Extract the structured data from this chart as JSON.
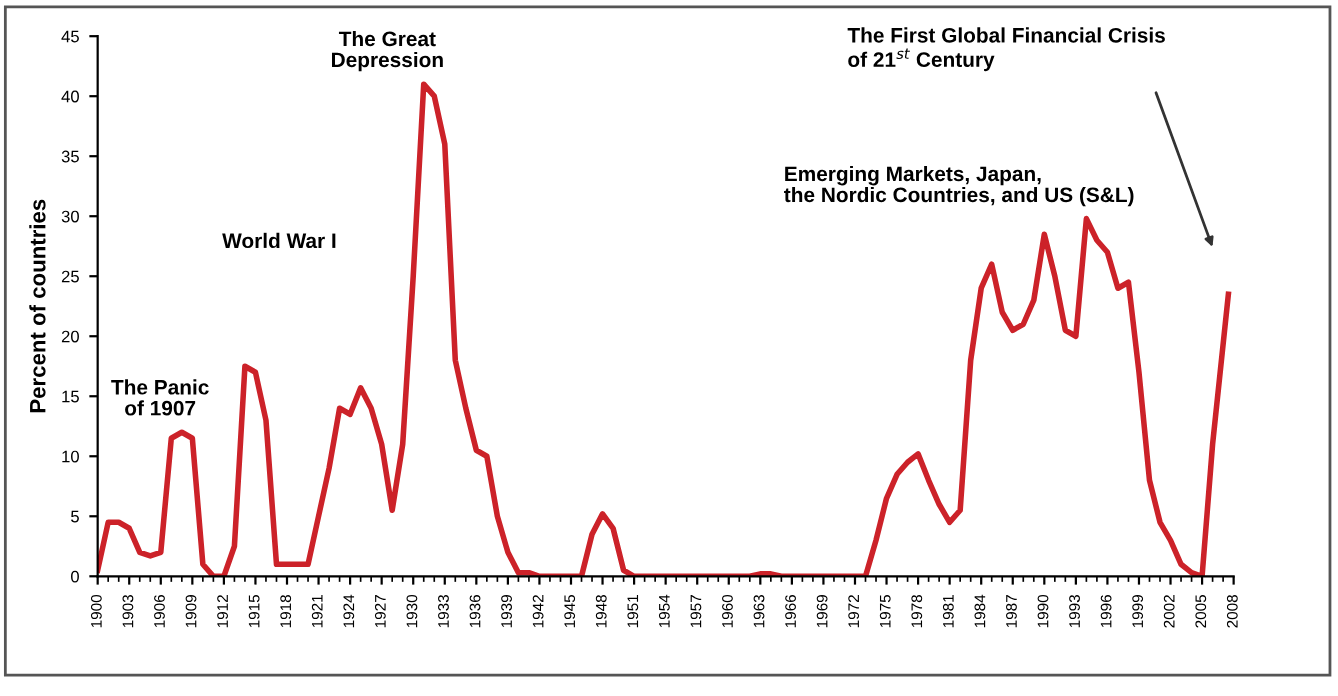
{
  "chart_data": {
    "type": "line",
    "ylabel": "Percent of countries",
    "x": [
      1900,
      1901,
      1902,
      1903,
      1904,
      1905,
      1906,
      1907,
      1908,
      1909,
      1910,
      1911,
      1912,
      1913,
      1914,
      1915,
      1916,
      1917,
      1918,
      1919,
      1920,
      1921,
      1922,
      1923,
      1924,
      1925,
      1926,
      1927,
      1928,
      1929,
      1930,
      1931,
      1932,
      1933,
      1934,
      1935,
      1936,
      1937,
      1938,
      1939,
      1940,
      1941,
      1942,
      1946,
      1947,
      1948,
      1949,
      1950,
      1951,
      1962,
      1963,
      1964,
      1965,
      1973,
      1974,
      1975,
      1976,
      1977,
      1978,
      1979,
      1980,
      1981,
      1982,
      1983,
      1984,
      1985,
      1986,
      1987,
      1988,
      1989,
      1990,
      1991,
      1992,
      1993,
      1994,
      1995,
      1996,
      1997,
      1998,
      1999,
      2000,
      2001,
      2002,
      2003,
      2004,
      2005,
      2006,
      2007.5
    ],
    "series": [
      {
        "color": "#cc2229",
        "values": [
          0.5,
          4.5,
          4.5,
          4,
          2,
          1.7,
          2,
          11.5,
          12,
          11.5,
          1,
          0,
          0,
          2.5,
          17.5,
          17,
          13,
          1,
          1,
          1,
          1,
          5,
          9,
          14,
          13.5,
          15.7,
          14,
          11,
          5.5,
          11,
          25,
          41,
          40,
          36,
          18,
          14,
          10.5,
          10,
          5,
          2,
          0.3,
          0.3,
          0,
          0,
          3.5,
          5.2,
          4,
          0.5,
          0,
          0,
          0.2,
          0.2,
          0,
          0,
          3,
          6.5,
          8.5,
          9.5,
          10.2,
          8,
          6,
          4.5,
          5.5,
          18,
          24,
          26,
          22,
          20.5,
          21,
          23,
          28.5,
          25,
          20.5,
          20,
          29.8,
          28,
          27,
          24,
          24.5,
          17,
          8,
          4.5,
          3,
          1,
          0.3,
          0,
          11,
          23.5
        ]
      }
    ],
    "xlim": [
      1900,
      2008
    ],
    "xticks": [
      1900,
      1903,
      1906,
      1909,
      1912,
      1915,
      1918,
      1921,
      1924,
      1927,
      1930,
      1933,
      1936,
      1939,
      1942,
      1945,
      1948,
      1951,
      1954,
      1957,
      1960,
      1963,
      1966,
      1969,
      1972,
      1975,
      1978,
      1981,
      1984,
      1987,
      1990,
      1993,
      1996,
      1999,
      2002,
      2005,
      2008
    ],
    "ylim": [
      0,
      45
    ],
    "yticks": [
      0,
      5,
      10,
      15,
      20,
      25,
      30,
      35,
      40,
      45
    ],
    "grid": false,
    "legend": false,
    "marker": "none",
    "line_style": "solid",
    "annotations": [
      "The Panic\nof 1907",
      "World War I",
      "The Great\nDepression",
      "Emerging Markets, Japan,\nthe Nordic Countries, and US (S&L)",
      "The First Global Financial Crisis\nof 21$^{st}$ Century"
    ]
  }
}
